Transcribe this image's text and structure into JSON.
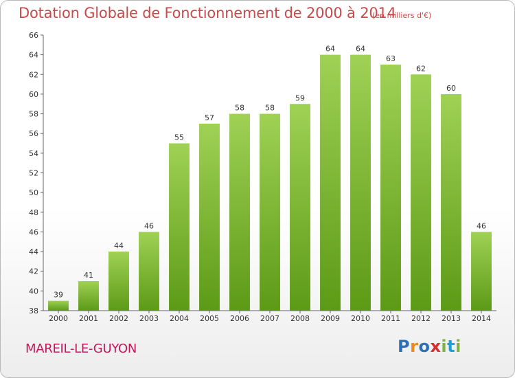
{
  "title": "Dotation Globale de Fonctionnement de 2000 à 2014",
  "subtitle": "(en milliers d'€)",
  "commune": "MAREIL-LE-GUYON",
  "logo": {
    "text": "Proxiti",
    "colors": [
      "#2f6fb5",
      "#e98a1a",
      "#2f6fb5",
      "#d62e2e",
      "#7cb342",
      "#1aa1d8",
      "#7cb342"
    ]
  },
  "colors": {
    "bar_top": "#9fd155",
    "bar_bottom": "#5c9a16",
    "title": "#c84a4a",
    "commune": "#c2185b"
  },
  "chart_data": {
    "type": "bar",
    "categories": [
      "2000",
      "2001",
      "2002",
      "2003",
      "2004",
      "2005",
      "2006",
      "2007",
      "2008",
      "2009",
      "2010",
      "2011",
      "2012",
      "2013",
      "2014"
    ],
    "values": [
      39,
      41,
      44,
      46,
      55,
      57,
      58,
      58,
      59,
      64,
      64,
      63,
      62,
      60,
      46
    ],
    "title": "Dotation Globale de Fonctionnement de 2000 à 2014",
    "subtitle": "(en milliers d'€)",
    "xlabel": "",
    "ylabel": "",
    "ylim": [
      38,
      66
    ],
    "yticks": [
      38,
      40,
      42,
      44,
      46,
      48,
      50,
      52,
      54,
      56,
      58,
      60,
      62,
      64,
      66
    ],
    "grid": false,
    "legend": "none"
  }
}
